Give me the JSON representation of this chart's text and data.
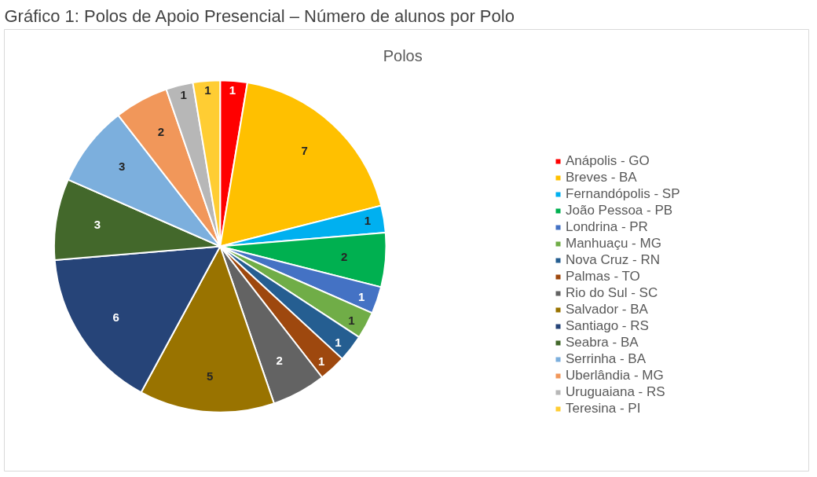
{
  "chart_data": {
    "type": "pie",
    "title": "Gráfico 1: Polos de Apoio Presencial – Número de alunos por Polo",
    "subtitle": "Polos",
    "categories": [
      "Anápolis - GO",
      "Breves - BA",
      "Fernandópolis - SP",
      "João Pessoa - PB",
      "Londrina - PR",
      "Manhuaçu - MG",
      "Nova Cruz - RN",
      "Palmas - TO",
      "Rio do Sul - SC",
      "Salvador - BA",
      "Santiago - RS",
      "Seabra - BA",
      "Serrinha - BA",
      "Uberlândia - MG",
      "Uruguaiana - RS",
      "Teresina - PI"
    ],
    "values": [
      1,
      7,
      1,
      2,
      1,
      1,
      1,
      1,
      2,
      5,
      6,
      3,
      3,
      2,
      1,
      1
    ],
    "colors": [
      "#ff0000",
      "#ffc000",
      "#00b0f0",
      "#00b050",
      "#4472c4",
      "#70ad47",
      "#255e91",
      "#9e480e",
      "#636363",
      "#997300",
      "#264478",
      "#43682b",
      "#7cafdd",
      "#f1975a",
      "#b7b7b7",
      "#ffcd33"
    ],
    "data_labels": true,
    "legend": "right"
  }
}
